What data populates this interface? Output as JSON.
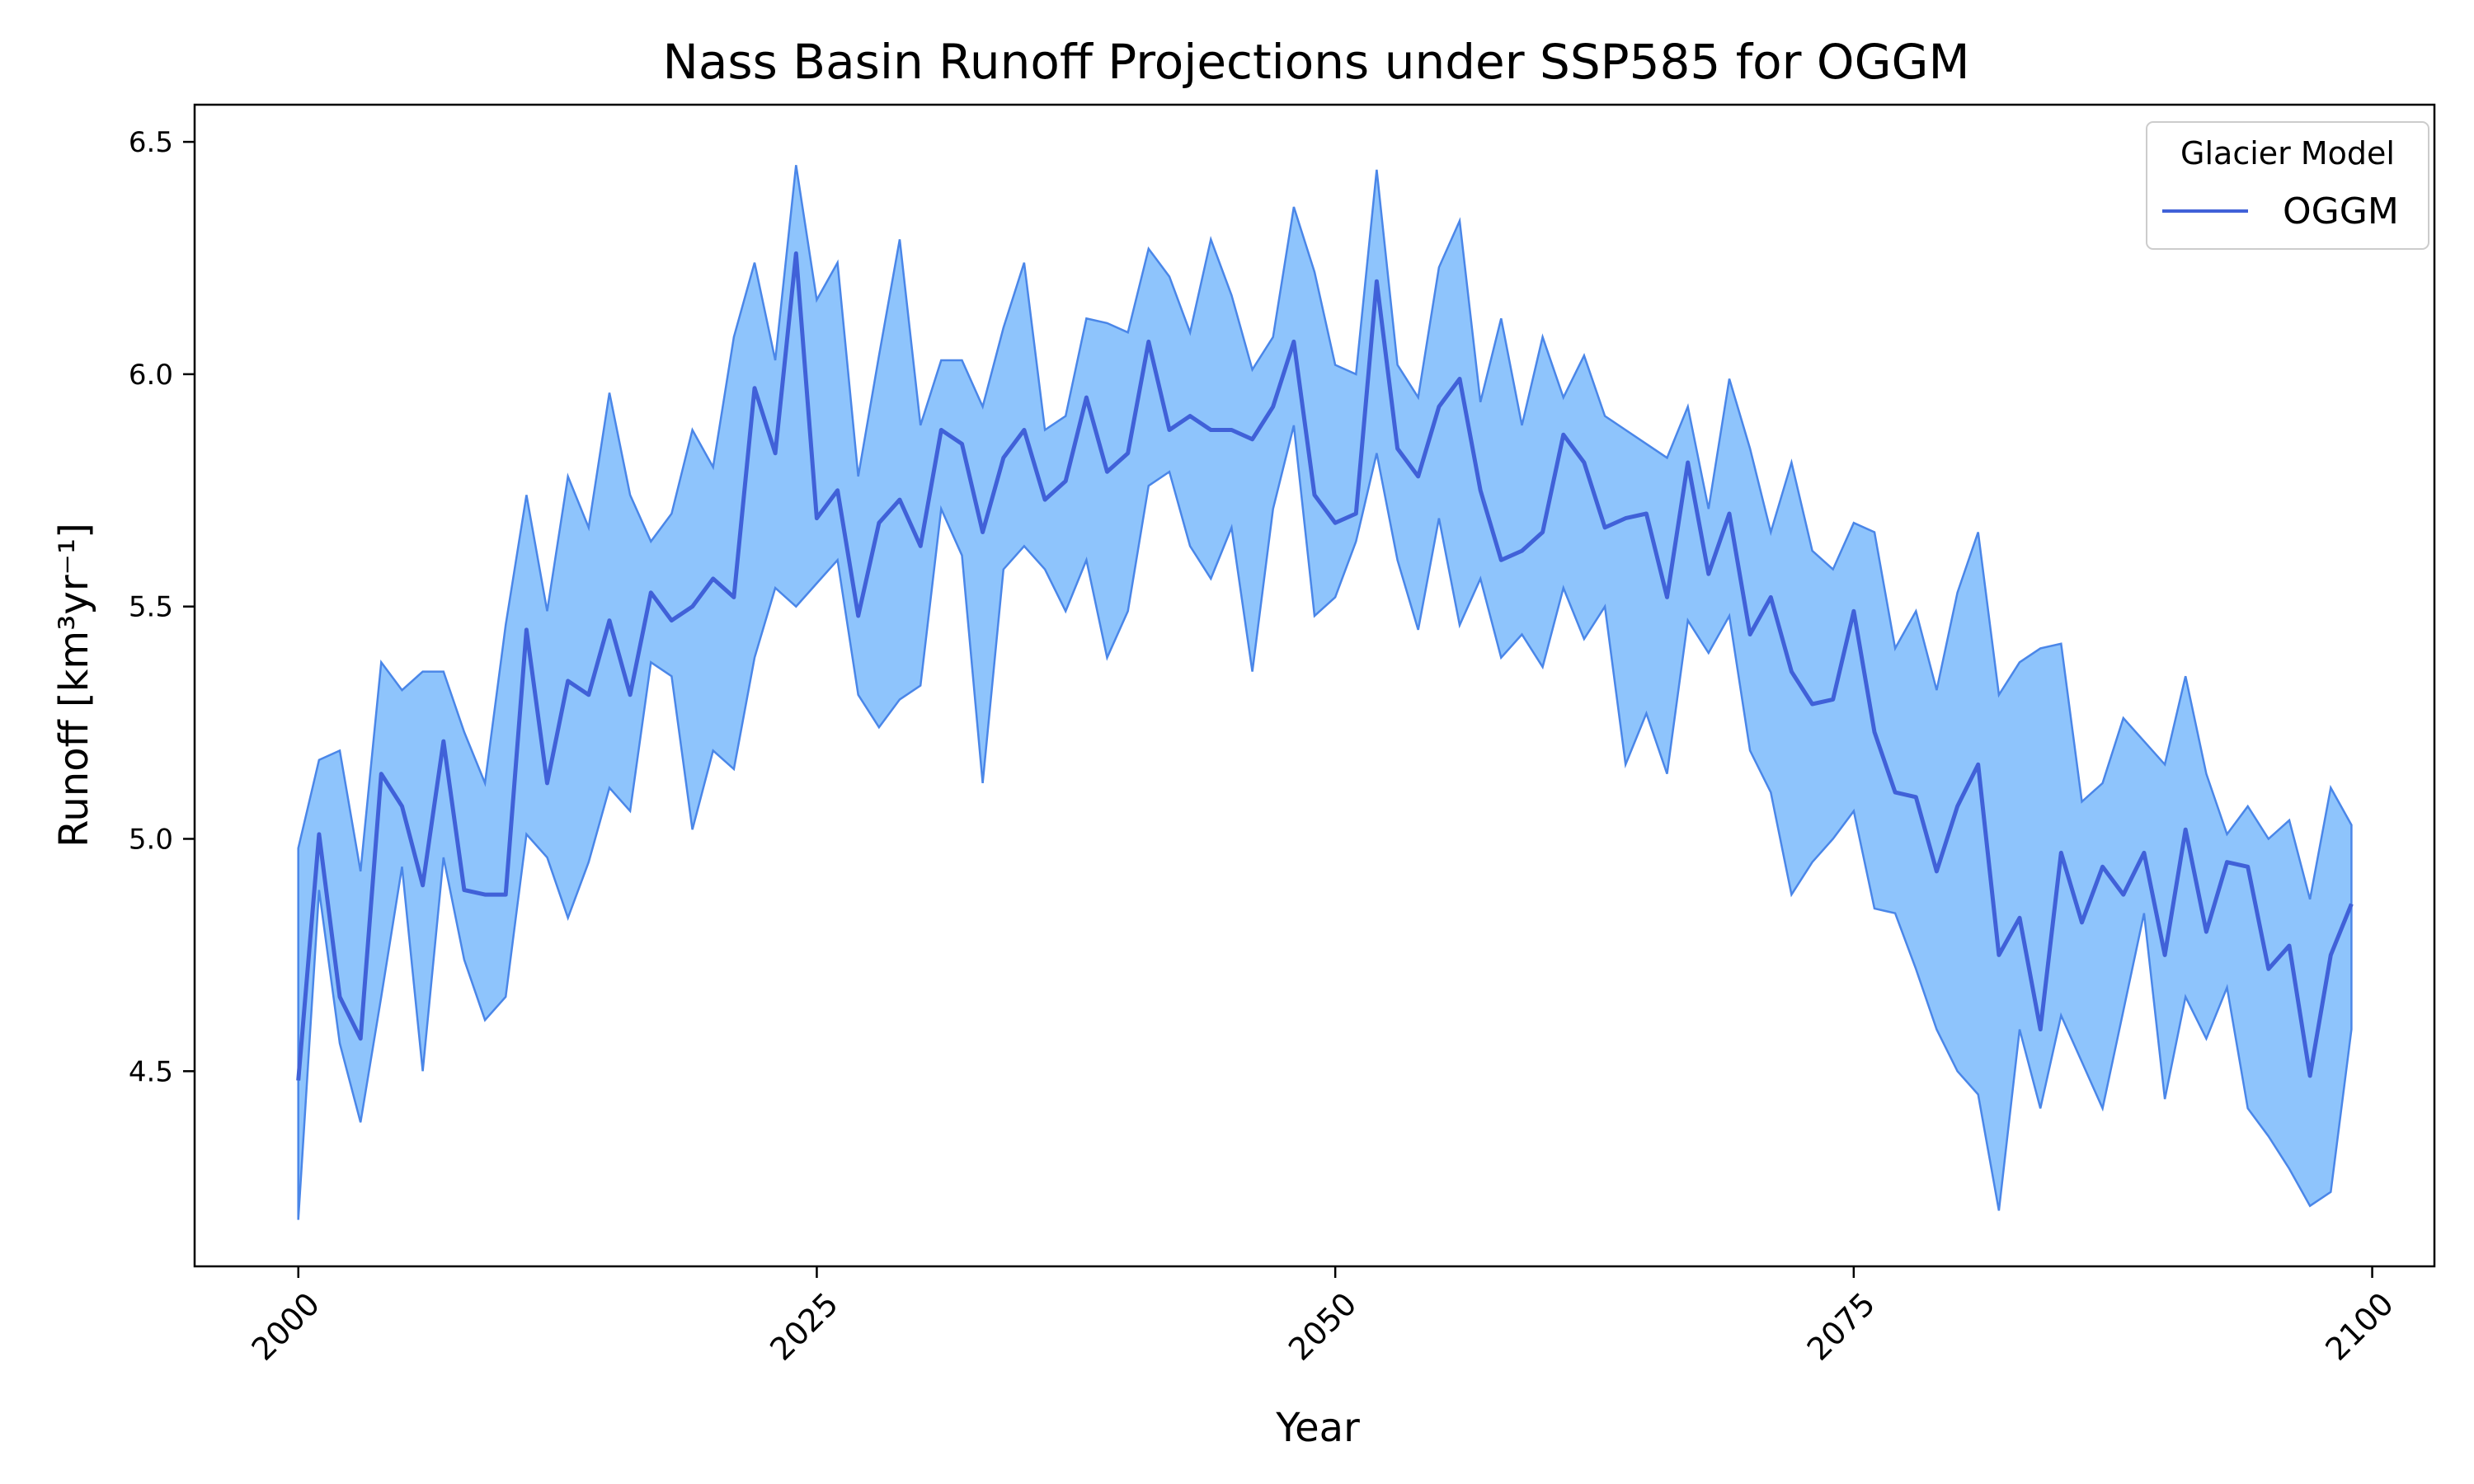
{
  "chart_data": {
    "type": "area",
    "title": "Nass Basin Runoff Projections under SSP585 for OGGM",
    "xlabel": "Year",
    "ylabel": "Runoff [km³yr⁻¹]",
    "xlim": [
      1995,
      2103
    ],
    "ylim": [
      4.08,
      6.58
    ],
    "xticks": [
      2000,
      2025,
      2050,
      2075,
      2100
    ],
    "yticks": [
      4.5,
      5.0,
      5.5,
      6.0,
      6.5
    ],
    "grid": false,
    "legend": {
      "title": "Glacier Model",
      "position": "top-right"
    },
    "colors": {
      "line": "#4061d8",
      "band_fill": "#8ec4fc",
      "band_edge": "#4a86e8"
    },
    "series": [
      {
        "name": "OGGM",
        "x_start": 2000,
        "x_end": 2099,
        "values": [
          4.48,
          5.01,
          4.66,
          4.57,
          5.14,
          5.07,
          4.9,
          5.21,
          4.89,
          4.88,
          4.88,
          5.45,
          5.12,
          5.34,
          5.31,
          5.47,
          5.31,
          5.53,
          5.47,
          5.5,
          5.56,
          5.52,
          5.97,
          5.83,
          6.26,
          5.69,
          5.75,
          5.48,
          5.68,
          5.73,
          5.63,
          5.88,
          5.85,
          5.66,
          5.82,
          5.88,
          5.73,
          5.77,
          5.95,
          5.79,
          5.83,
          6.07,
          5.88,
          5.91,
          5.88,
          5.88,
          5.86,
          5.93,
          6.07,
          5.74,
          5.68,
          5.7,
          6.2,
          5.84,
          5.78,
          5.93,
          5.99,
          5.75,
          5.6,
          5.62,
          5.66,
          5.87,
          5.81,
          5.67,
          5.69,
          5.7,
          5.52,
          5.81,
          5.57,
          5.7,
          5.44,
          5.52,
          5.36,
          5.29,
          5.3,
          5.49,
          5.23,
          5.1,
          5.09,
          4.93,
          5.07,
          5.16,
          4.75,
          4.83,
          4.59,
          4.97,
          4.82,
          4.94,
          4.88,
          4.97,
          4.75,
          5.02,
          4.8,
          4.95,
          4.94,
          4.72,
          4.77,
          4.49,
          4.75,
          4.86
        ],
        "band_upper": [
          4.98,
          5.17,
          5.19,
          4.93,
          5.38,
          5.32,
          5.36,
          5.36,
          5.23,
          5.12,
          5.46,
          5.74,
          5.49,
          5.78,
          5.67,
          5.96,
          5.74,
          5.64,
          5.7,
          5.88,
          5.8,
          6.08,
          6.24,
          6.03,
          6.45,
          6.16,
          6.24,
          5.78,
          6.04,
          6.29,
          5.89,
          6.03,
          6.03,
          5.93,
          6.1,
          6.24,
          5.88,
          5.91,
          6.12,
          6.11,
          6.09,
          6.27,
          6.21,
          6.09,
          6.29,
          6.17,
          6.01,
          6.08,
          6.36,
          6.22,
          6.02,
          6.0,
          6.44,
          6.02,
          5.95,
          6.23,
          6.33,
          5.94,
          6.12,
          5.89,
          6.08,
          5.95,
          6.04,
          5.91,
          5.88,
          5.85,
          5.82,
          5.93,
          5.71,
          5.99,
          5.84,
          5.66,
          5.81,
          5.62,
          5.58,
          5.68,
          5.66,
          5.41,
          5.49,
          5.32,
          5.53,
          5.66,
          5.31,
          5.38,
          5.41,
          5.42,
          5.08,
          5.12,
          5.26,
          5.21,
          5.16,
          5.35,
          5.14,
          5.01,
          5.07,
          5.0,
          5.04,
          4.87,
          5.11,
          5.03
        ],
        "band_lower": [
          4.18,
          4.89,
          4.56,
          4.39,
          4.66,
          4.94,
          4.5,
          4.96,
          4.74,
          4.61,
          4.66,
          5.01,
          4.96,
          4.83,
          4.95,
          5.11,
          5.06,
          5.38,
          5.35,
          5.02,
          5.19,
          5.15,
          5.39,
          5.54,
          5.5,
          5.55,
          5.6,
          5.31,
          5.24,
          5.3,
          5.33,
          5.71,
          5.61,
          5.12,
          5.58,
          5.63,
          5.58,
          5.49,
          5.6,
          5.39,
          5.49,
          5.76,
          5.79,
          5.63,
          5.56,
          5.67,
          5.36,
          5.71,
          5.89,
          5.48,
          5.52,
          5.64,
          5.83,
          5.6,
          5.45,
          5.69,
          5.46,
          5.56,
          5.39,
          5.44,
          5.37,
          5.54,
          5.43,
          5.5,
          5.16,
          5.27,
          5.14,
          5.47,
          5.4,
          5.48,
          5.19,
          5.1,
          4.88,
          4.95,
          5.0,
          5.06,
          4.85,
          4.84,
          4.72,
          4.59,
          4.5,
          4.45,
          4.2,
          4.59,
          4.42,
          4.62,
          4.52,
          4.42,
          4.63,
          4.84,
          4.44,
          4.66,
          4.57,
          4.68,
          4.42,
          4.36,
          4.29,
          4.21,
          4.24,
          4.59
        ]
      }
    ]
  }
}
